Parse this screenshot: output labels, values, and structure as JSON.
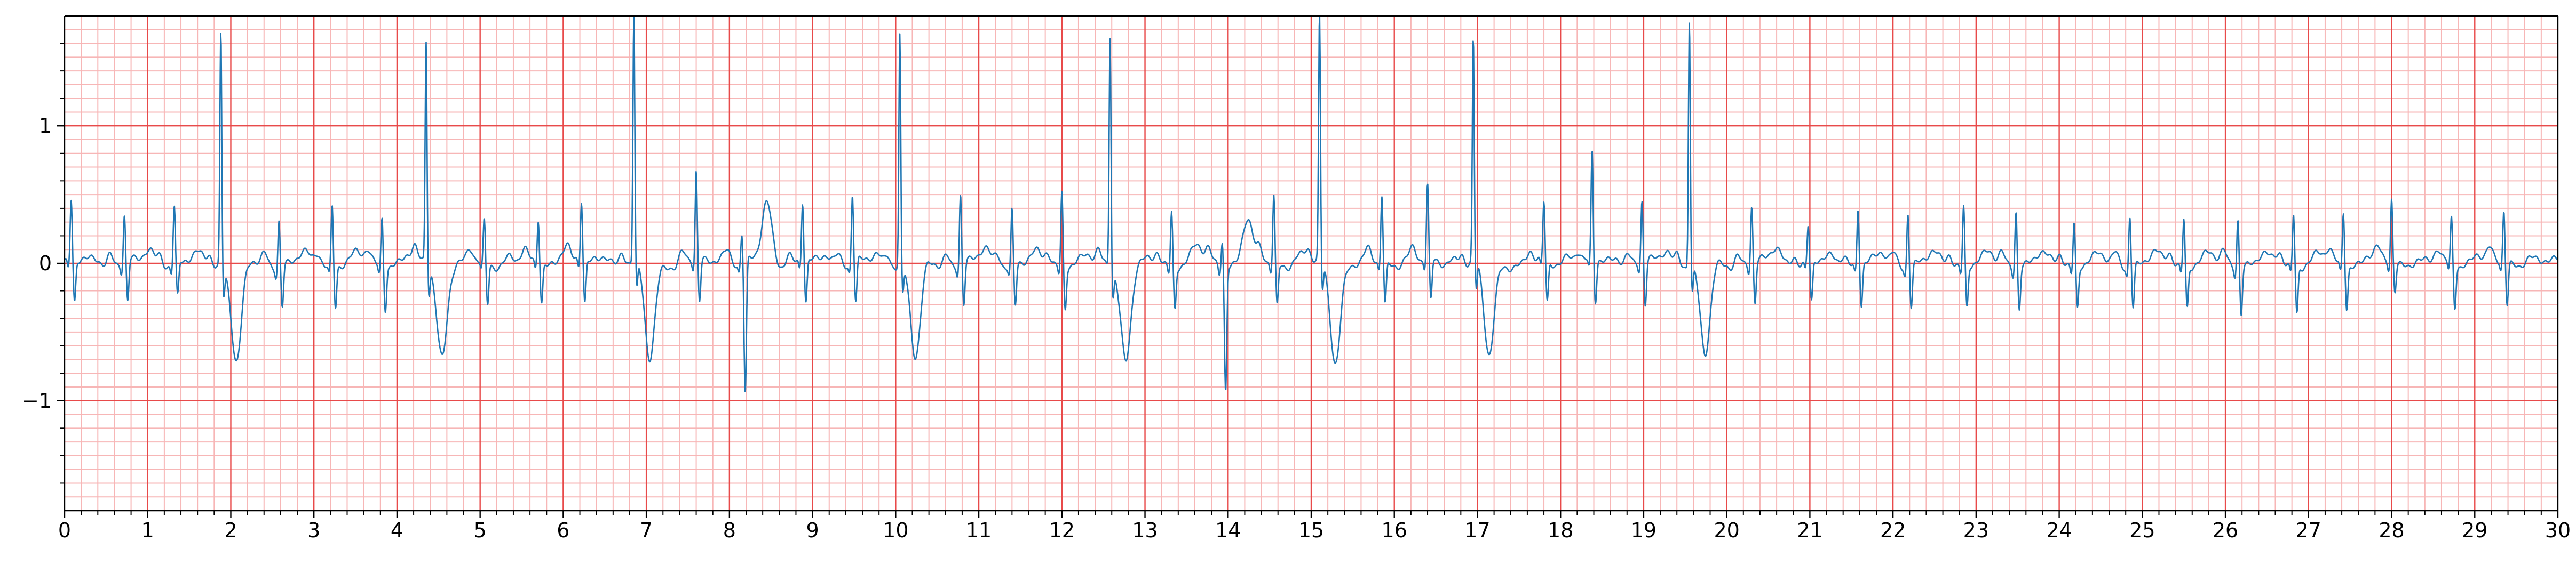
{
  "chart_data": {
    "type": "line",
    "title": "",
    "xlabel": "",
    "ylabel": "",
    "xlim": [
      0,
      30
    ],
    "ylim": [
      -1.8,
      1.8
    ],
    "x_ticks": [
      "0",
      "1",
      "2",
      "3",
      "4",
      "5",
      "6",
      "7",
      "8",
      "9",
      "10",
      "11",
      "12",
      "13",
      "14",
      "15",
      "16",
      "17",
      "18",
      "19",
      "20",
      "21",
      "22",
      "23",
      "24",
      "25",
      "26",
      "27",
      "28",
      "29",
      "30"
    ],
    "y_ticks": [
      "1",
      "0",
      "−1"
    ],
    "grid": "ecg-paper",
    "colors": {
      "major_grid": "#e84a4a",
      "minor_grid": "#f7b6b6",
      "trace": "#1f77b4",
      "axis": "#000000"
    },
    "series": [
      {
        "sampling": "beats",
        "beats": [
          {
            "t": 0.08,
            "r": 0.45,
            "s": -0.3,
            "tw": 0.05,
            "type": "n"
          },
          {
            "t": 0.72,
            "r": 0.35,
            "s": -0.3,
            "tw": 0.1,
            "type": "n"
          },
          {
            "t": 1.32,
            "r": 0.42,
            "s": -0.25,
            "tw": 0.06,
            "type": "n"
          },
          {
            "t": 1.88,
            "r": 1.7,
            "s": -0.2,
            "tw": 0.02,
            "type": "v",
            "dip": -0.73
          },
          {
            "t": 2.58,
            "r": 0.34,
            "s": -0.3,
            "tw": 0.06,
            "type": "n"
          },
          {
            "t": 3.22,
            "r": 0.44,
            "s": -0.3,
            "tw": 0.06,
            "type": "n"
          },
          {
            "t": 3.82,
            "r": 0.36,
            "s": -0.3,
            "tw": 0.05,
            "type": "n"
          },
          {
            "t": 4.35,
            "r": 1.62,
            "s": -0.2,
            "tw": 0.02,
            "type": "v",
            "dip": -0.66
          },
          {
            "t": 5.05,
            "r": 0.3,
            "s": -0.3,
            "tw": 0.06,
            "type": "n"
          },
          {
            "t": 5.7,
            "r": 0.32,
            "s": -0.28,
            "tw": 0.1,
            "type": "n"
          },
          {
            "t": 6.22,
            "r": 0.44,
            "s": -0.3,
            "tw": 0.08,
            "type": "n"
          },
          {
            "t": 6.85,
            "r": 1.8,
            "s": -0.2,
            "tw": 0.02,
            "type": "v",
            "dip": -0.7
          },
          {
            "t": 7.6,
            "r": 0.65,
            "s": -0.3,
            "tw": 0.08,
            "type": "n"
          },
          {
            "t": 8.15,
            "r": 0.22,
            "s": -0.97,
            "tw": 0.45,
            "type": "n"
          },
          {
            "t": 8.88,
            "r": 0.44,
            "s": -0.3,
            "tw": 0.08,
            "type": "n"
          },
          {
            "t": 9.48,
            "r": 0.5,
            "s": -0.3,
            "tw": 0.06,
            "type": "n"
          },
          {
            "t": 10.05,
            "r": 1.68,
            "s": -0.2,
            "tw": 0.02,
            "type": "v",
            "dip": -0.7
          },
          {
            "t": 10.78,
            "r": 0.52,
            "s": -0.3,
            "tw": 0.1,
            "type": "n"
          },
          {
            "t": 11.4,
            "r": 0.4,
            "s": -0.3,
            "tw": 0.06,
            "type": "n"
          },
          {
            "t": 12.0,
            "r": 0.55,
            "s": -0.3,
            "tw": 0.04,
            "type": "n"
          },
          {
            "t": 12.58,
            "r": 1.7,
            "s": -0.2,
            "tw": 0.02,
            "type": "v",
            "dip": -0.7
          },
          {
            "t": 13.32,
            "r": 0.4,
            "s": -0.3,
            "tw": 0.12,
            "type": "n"
          },
          {
            "t": 13.93,
            "r": 0.2,
            "s": -0.9,
            "tw": 0.32,
            "type": "n"
          },
          {
            "t": 14.55,
            "r": 0.5,
            "s": -0.3,
            "tw": 0.06,
            "type": "n"
          },
          {
            "t": 15.1,
            "r": 1.78,
            "s": -0.2,
            "tw": 0.02,
            "type": "v",
            "dip": -0.7
          },
          {
            "t": 15.85,
            "r": 0.5,
            "s": -0.3,
            "tw": 0.06,
            "type": "n"
          },
          {
            "t": 16.4,
            "r": 0.55,
            "s": -0.3,
            "tw": 0.05,
            "type": "n"
          },
          {
            "t": 16.95,
            "r": 1.62,
            "s": -0.2,
            "tw": 0.02,
            "type": "v",
            "dip": -0.68
          },
          {
            "t": 17.8,
            "r": 0.42,
            "s": -0.3,
            "tw": 0.08,
            "type": "n"
          },
          {
            "t": 18.38,
            "r": 0.8,
            "s": -0.3,
            "tw": 0.06,
            "type": "n"
          },
          {
            "t": 18.98,
            "r": 0.45,
            "s": -0.32,
            "tw": 0.1,
            "type": "n"
          },
          {
            "t": 19.55,
            "r": 1.8,
            "s": -0.2,
            "tw": 0.02,
            "type": "v",
            "dip": -0.68
          },
          {
            "t": 20.3,
            "r": 0.42,
            "s": -0.3,
            "tw": 0.12,
            "type": "n"
          },
          {
            "t": 20.98,
            "r": 0.26,
            "s": -0.3,
            "tw": 0.05,
            "type": "n"
          },
          {
            "t": 21.58,
            "r": 0.42,
            "s": -0.3,
            "tw": 0.06,
            "type": "n"
          },
          {
            "t": 22.18,
            "r": 0.4,
            "s": -0.3,
            "tw": 0.06,
            "type": "n"
          },
          {
            "t": 22.85,
            "r": 0.44,
            "s": -0.3,
            "tw": 0.06,
            "type": "n"
          },
          {
            "t": 23.48,
            "r": 0.42,
            "s": -0.3,
            "tw": 0.06,
            "type": "n"
          },
          {
            "t": 24.18,
            "r": 0.32,
            "s": -0.3,
            "tw": 0.05,
            "type": "n"
          },
          {
            "t": 24.85,
            "r": 0.38,
            "s": -0.3,
            "tw": 0.06,
            "type": "n"
          },
          {
            "t": 25.5,
            "r": 0.35,
            "s": -0.3,
            "tw": 0.06,
            "type": "n"
          },
          {
            "t": 26.15,
            "r": 0.36,
            "s": -0.34,
            "tw": 0.05,
            "type": "n"
          },
          {
            "t": 26.82,
            "r": 0.38,
            "s": -0.34,
            "tw": 0.06,
            "type": "n"
          },
          {
            "t": 27.42,
            "r": 0.4,
            "s": -0.3,
            "tw": 0.06,
            "type": "n"
          },
          {
            "t": 28.0,
            "r": 0.47,
            "s": -0.2,
            "tw": 0.04,
            "type": "n"
          },
          {
            "t": 28.72,
            "r": 0.34,
            "s": -0.3,
            "tw": 0.08,
            "type": "n"
          },
          {
            "t": 29.35,
            "r": 0.38,
            "s": -0.3,
            "tw": 0.06,
            "type": "n"
          }
        ]
      }
    ]
  }
}
